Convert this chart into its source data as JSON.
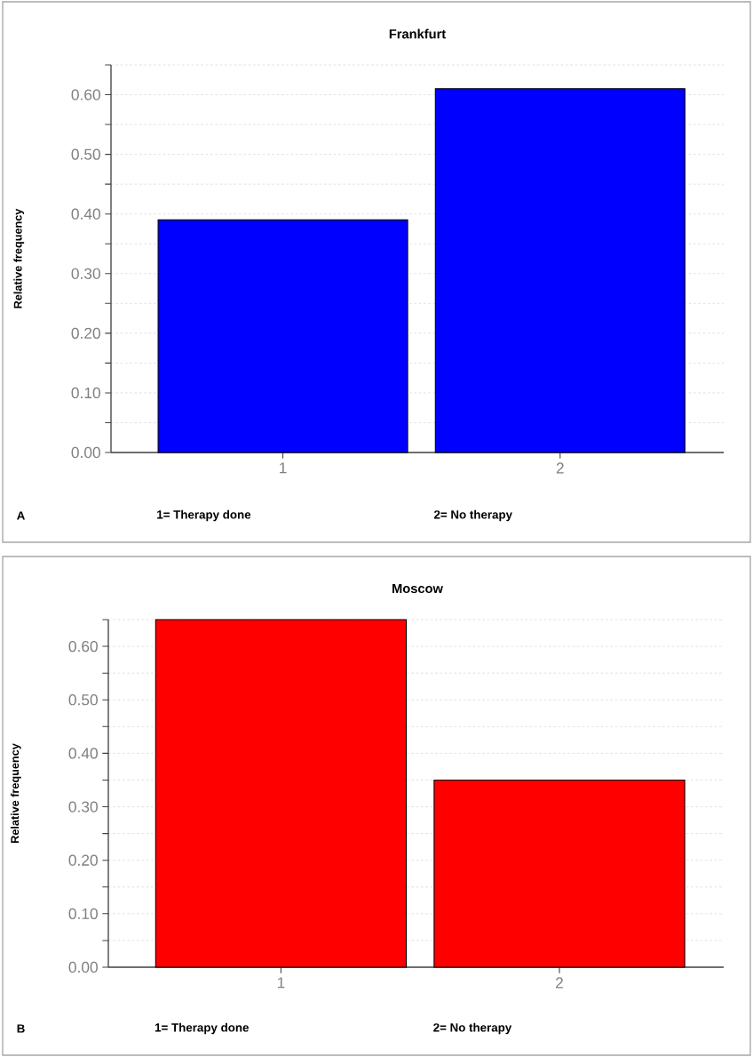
{
  "chart_data": [
    {
      "type": "bar",
      "title": "Frankfurt",
      "ylabel": "Relative frequency",
      "categories": [
        "1",
        "2"
      ],
      "values": [
        0.39,
        0.61
      ],
      "color": "#0000ff",
      "ylim": [
        0,
        0.65
      ],
      "yticks": [
        {
          "value": 0,
          "label": "0.00"
        },
        {
          "value": 0.05,
          "label": null
        },
        {
          "value": 0.1,
          "label": "0.10"
        },
        {
          "value": 0.15,
          "label": null
        },
        {
          "value": 0.2,
          "label": "0.20"
        },
        {
          "value": 0.25,
          "label": null
        },
        {
          "value": 0.3,
          "label": "0.30"
        },
        {
          "value": 0.35,
          "label": null
        },
        {
          "value": 0.4,
          "label": "0.40"
        },
        {
          "value": 0.45,
          "label": null
        },
        {
          "value": 0.5,
          "label": "0.50"
        },
        {
          "value": 0.55,
          "label": null
        },
        {
          "value": 0.6,
          "label": "0.60"
        },
        {
          "value": 0.65,
          "label": null
        }
      ],
      "grid": "y",
      "annotations": [
        "A",
        "1= Therapy done",
        "2= No therapy"
      ]
    },
    {
      "type": "bar",
      "title": "Moscow",
      "ylabel": "Relative frequency",
      "categories": [
        "1",
        "2"
      ],
      "values": [
        0.65,
        0.35
      ],
      "color": "#ff0000",
      "ylim": [
        0,
        0.65
      ],
      "yticks": [
        {
          "value": 0,
          "label": "0.00"
        },
        {
          "value": 0.05,
          "label": null
        },
        {
          "value": 0.1,
          "label": "0.10"
        },
        {
          "value": 0.15,
          "label": null
        },
        {
          "value": 0.2,
          "label": "0.20"
        },
        {
          "value": 0.25,
          "label": null
        },
        {
          "value": 0.3,
          "label": "0.30"
        },
        {
          "value": 0.35,
          "label": null
        },
        {
          "value": 0.4,
          "label": "0.40"
        },
        {
          "value": 0.45,
          "label": null
        },
        {
          "value": 0.5,
          "label": "0.50"
        },
        {
          "value": 0.55,
          "label": null
        },
        {
          "value": 0.6,
          "label": "0.60"
        },
        {
          "value": 0.65,
          "label": null
        }
      ],
      "grid": "y",
      "annotations": [
        "B",
        "1= Therapy done",
        "2= No therapy"
      ]
    }
  ]
}
